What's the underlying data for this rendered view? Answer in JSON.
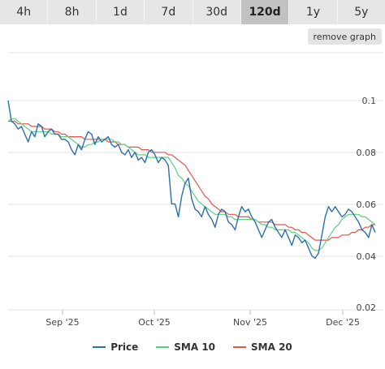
{
  "tabs": [
    {
      "label": "4h"
    },
    {
      "label": "8h"
    },
    {
      "label": "1d"
    },
    {
      "label": "7d"
    },
    {
      "label": "30d"
    },
    {
      "label": "120d"
    },
    {
      "label": "1y"
    },
    {
      "label": "5y"
    }
  ],
  "active_tab": "120d",
  "remove_graph_label": "remove graph",
  "chart_data": {
    "type": "line",
    "x_ticks": [
      "Sep '25",
      "Oct '25",
      "Nov '25",
      "Dec '25"
    ],
    "y_ticks": [
      "0.1",
      "0.08",
      "0.06",
      "0.04",
      "0.02"
    ],
    "ylim": [
      0.02,
      0.1
    ],
    "grid": true,
    "legend_placement": "bottom",
    "series": [
      {
        "name": "Price",
        "color": "#2b6fad",
        "values": [
          0.1,
          0.092,
          0.091,
          0.089,
          0.09,
          0.087,
          0.084,
          0.088,
          0.086,
          0.091,
          0.09,
          0.086,
          0.088,
          0.089,
          0.087,
          0.087,
          0.085,
          0.085,
          0.084,
          0.081,
          0.079,
          0.083,
          0.081,
          0.085,
          0.088,
          0.087,
          0.083,
          0.086,
          0.084,
          0.085,
          0.086,
          0.083,
          0.082,
          0.083,
          0.08,
          0.079,
          0.081,
          0.078,
          0.08,
          0.077,
          0.078,
          0.076,
          0.08,
          0.081,
          0.079,
          0.076,
          0.078,
          0.077,
          0.075,
          0.06,
          0.06,
          0.055,
          0.063,
          0.068,
          0.07,
          0.062,
          0.058,
          0.057,
          0.055,
          0.059,
          0.056,
          0.054,
          0.051,
          0.056,
          0.058,
          0.057,
          0.053,
          0.052,
          0.05,
          0.055,
          0.059,
          0.057,
          0.058,
          0.055,
          0.053,
          0.05,
          0.047,
          0.05,
          0.053,
          0.054,
          0.051,
          0.049,
          0.047,
          0.05,
          0.047,
          0.044,
          0.048,
          0.047,
          0.045,
          0.046,
          0.043,
          0.04,
          0.039,
          0.041,
          0.048,
          0.055,
          0.059,
          0.057,
          0.059,
          0.057,
          0.055,
          0.056,
          0.058,
          0.057,
          0.055,
          0.053,
          0.05,
          0.049,
          0.047,
          0.052,
          0.049
        ]
      },
      {
        "name": "SMA 10",
        "color": "#5fcf7e",
        "values": [
          0.092,
          0.093,
          0.093,
          0.092,
          0.091,
          0.09,
          0.089,
          0.088,
          0.088,
          0.088,
          0.088,
          0.088,
          0.088,
          0.087,
          0.087,
          0.087,
          0.086,
          0.086,
          0.086,
          0.085,
          0.084,
          0.083,
          0.082,
          0.082,
          0.083,
          0.083,
          0.084,
          0.084,
          0.085,
          0.085,
          0.085,
          0.085,
          0.084,
          0.084,
          0.083,
          0.083,
          0.082,
          0.081,
          0.08,
          0.079,
          0.079,
          0.079,
          0.078,
          0.078,
          0.078,
          0.078,
          0.078,
          0.078,
          0.078,
          0.076,
          0.074,
          0.071,
          0.07,
          0.068,
          0.067,
          0.065,
          0.063,
          0.061,
          0.06,
          0.059,
          0.058,
          0.057,
          0.056,
          0.056,
          0.056,
          0.056,
          0.055,
          0.055,
          0.054,
          0.054,
          0.054,
          0.054,
          0.054,
          0.054,
          0.054,
          0.053,
          0.052,
          0.052,
          0.051,
          0.051,
          0.05,
          0.05,
          0.05,
          0.05,
          0.05,
          0.049,
          0.049,
          0.048,
          0.047,
          0.046,
          0.045,
          0.043,
          0.042,
          0.042,
          0.043,
          0.045,
          0.047,
          0.049,
          0.051,
          0.052,
          0.054,
          0.055,
          0.056,
          0.056,
          0.056,
          0.056,
          0.055,
          0.055,
          0.054,
          0.053,
          0.052
        ]
      },
      {
        "name": "SMA 20",
        "color": "#e4554f",
        "values": [
          0.092,
          0.092,
          0.092,
          0.091,
          0.091,
          0.091,
          0.091,
          0.09,
          0.09,
          0.09,
          0.09,
          0.089,
          0.089,
          0.089,
          0.088,
          0.088,
          0.087,
          0.087,
          0.086,
          0.086,
          0.086,
          0.086,
          0.086,
          0.085,
          0.085,
          0.085,
          0.085,
          0.085,
          0.085,
          0.085,
          0.084,
          0.084,
          0.084,
          0.083,
          0.083,
          0.083,
          0.082,
          0.082,
          0.082,
          0.082,
          0.081,
          0.081,
          0.081,
          0.08,
          0.08,
          0.08,
          0.08,
          0.08,
          0.079,
          0.079,
          0.078,
          0.077,
          0.076,
          0.075,
          0.073,
          0.071,
          0.069,
          0.067,
          0.065,
          0.063,
          0.062,
          0.06,
          0.059,
          0.058,
          0.057,
          0.057,
          0.056,
          0.056,
          0.056,
          0.055,
          0.055,
          0.055,
          0.055,
          0.054,
          0.054,
          0.053,
          0.053,
          0.053,
          0.053,
          0.053,
          0.052,
          0.052,
          0.052,
          0.052,
          0.051,
          0.051,
          0.05,
          0.05,
          0.049,
          0.049,
          0.048,
          0.047,
          0.046,
          0.046,
          0.046,
          0.046,
          0.046,
          0.047,
          0.047,
          0.047,
          0.048,
          0.048,
          0.048,
          0.049,
          0.049,
          0.05,
          0.05,
          0.051,
          0.051,
          0.052,
          0.052
        ]
      }
    ]
  }
}
